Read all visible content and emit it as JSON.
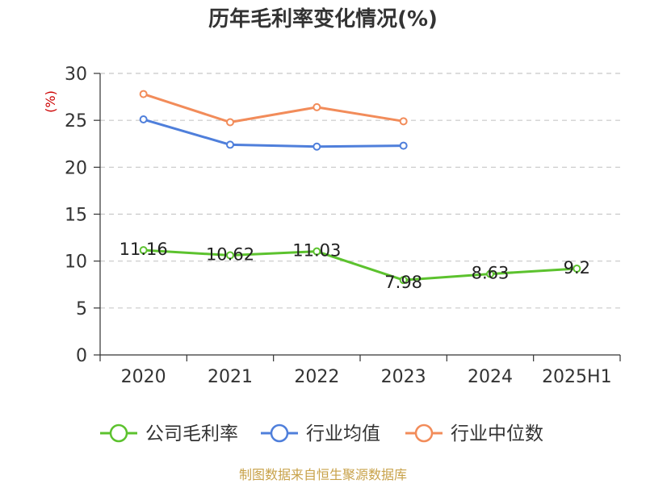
{
  "chart_data": {
    "type": "line",
    "title": "历年毛利率变化情况(%)",
    "unit_label": "(%)",
    "categories": [
      "2020",
      "2021",
      "2022",
      "2023",
      "2024",
      "2025H1"
    ],
    "ylim": [
      0,
      30
    ],
    "yticks": [
      "0",
      "5",
      "10",
      "15",
      "20",
      "25",
      "30"
    ],
    "grid": true,
    "legend_position": "bottom",
    "series": [
      {
        "name": "公司毛利率",
        "color": "#5cc22e",
        "values": [
          11.16,
          10.62,
          11.03,
          7.98,
          8.63,
          9.2
        ],
        "labels": [
          "11.16",
          "10.62",
          "11.03",
          "7.98",
          "8.63",
          "9.2"
        ]
      },
      {
        "name": "行业均值",
        "color": "#4f7fdb",
        "values": [
          25.1,
          22.4,
          22.2,
          22.3,
          null,
          null
        ]
      },
      {
        "name": "行业中位数",
        "color": "#f28c5a",
        "values": [
          27.8,
          24.8,
          26.4,
          24.9,
          null,
          null
        ]
      }
    ],
    "source": "制图数据来自恒生聚源数据库"
  }
}
